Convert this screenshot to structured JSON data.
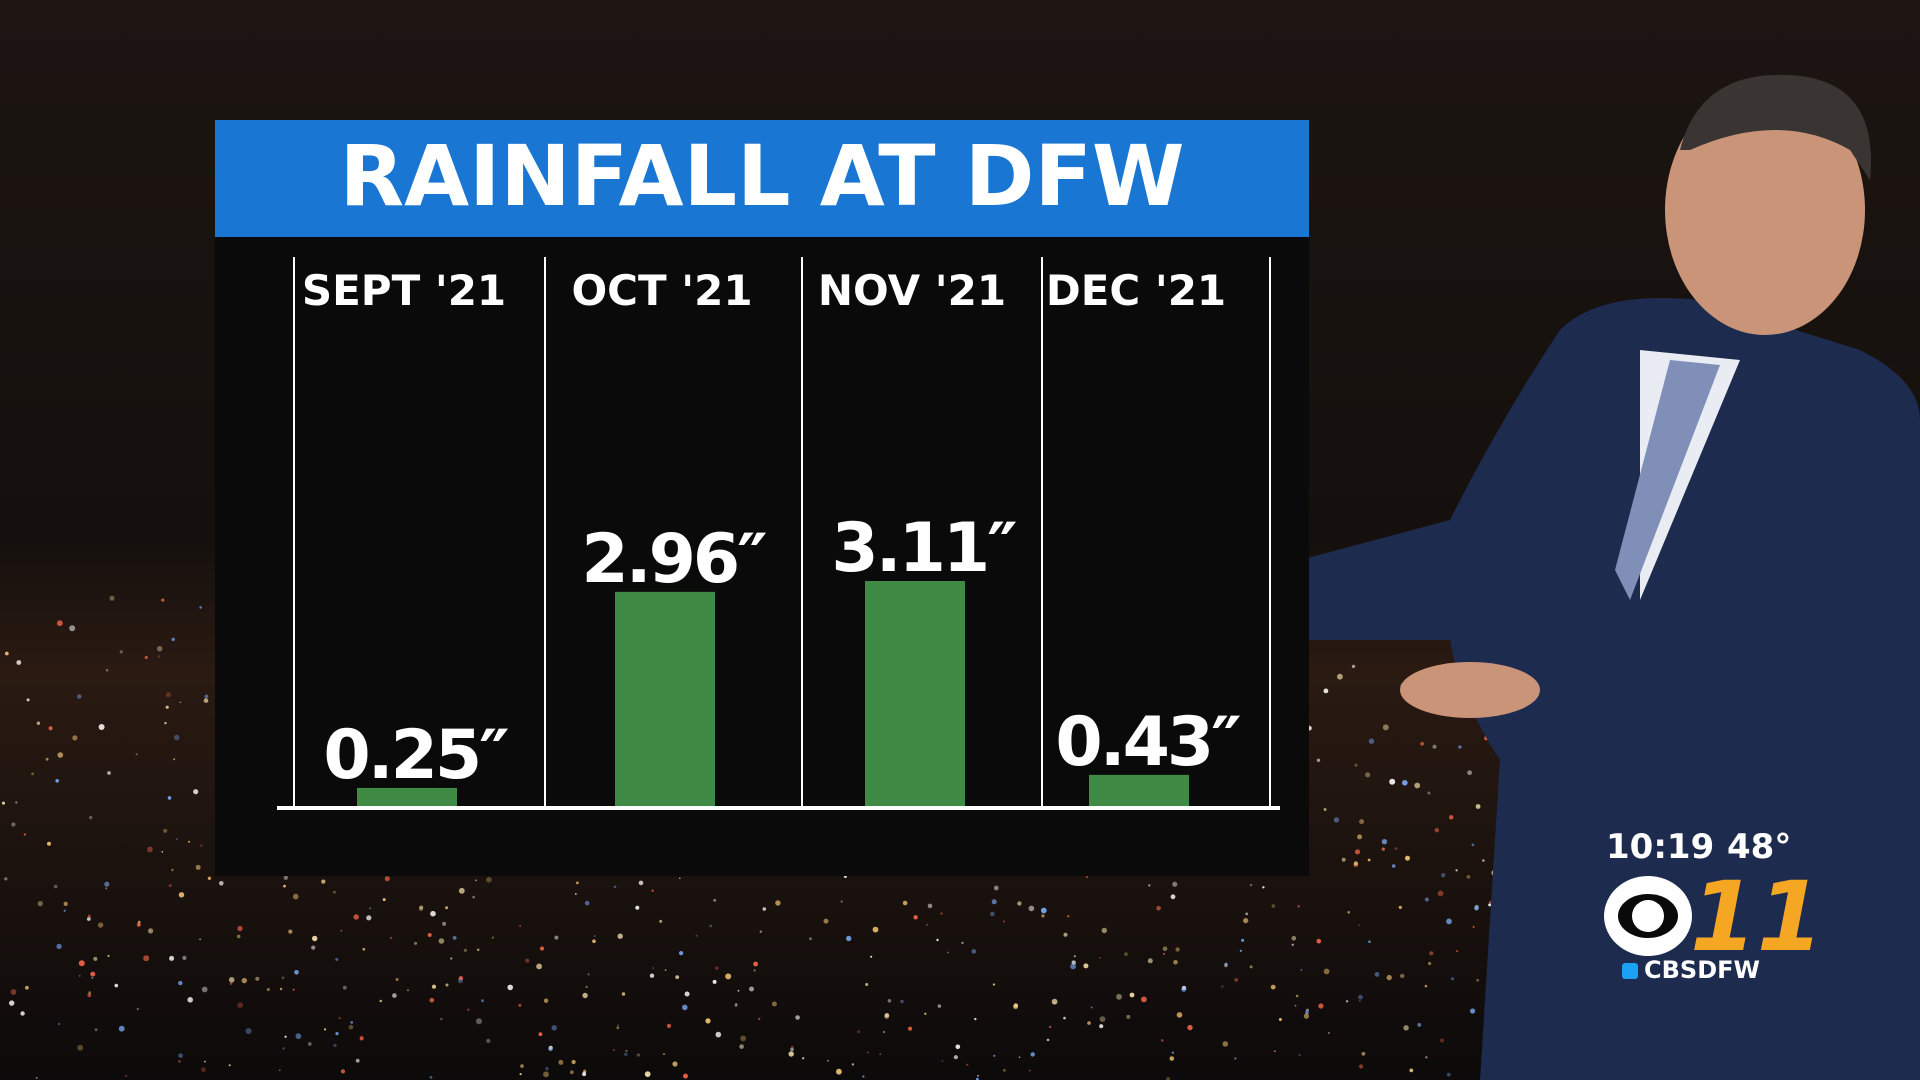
{
  "chart_data": {
    "type": "bar",
    "title": "RAINFALL AT DFW",
    "categories": [
      "SEPT '21",
      "OCT '21",
      "NOV '21",
      "DEC '21"
    ],
    "values": [
      0.25,
      2.96,
      3.11,
      0.43
    ],
    "value_labels": [
      "0.25″",
      "2.96″",
      "3.11″",
      "0.43″"
    ],
    "color": "#3f8a45"
  },
  "overlay": {
    "time": "10:19",
    "temperature": "48°",
    "channel": "11",
    "handle": "CBSDFW"
  }
}
